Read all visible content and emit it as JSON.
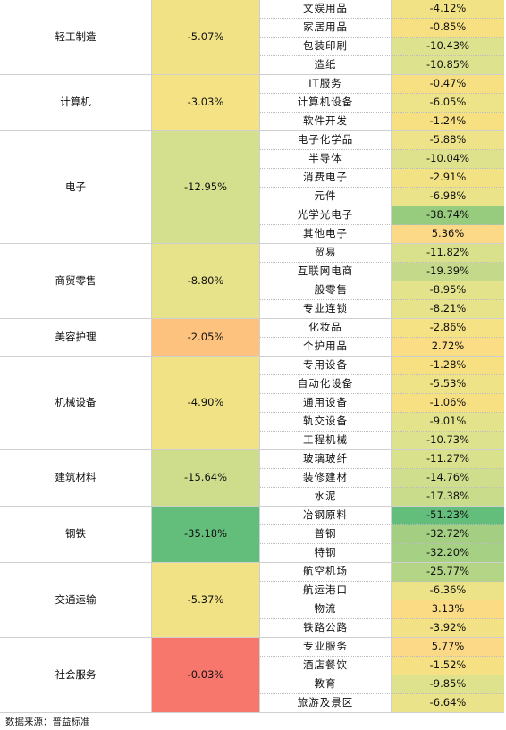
{
  "table": {
    "colors": {
      "yellow": "#F1E385",
      "light_green": "#D4E08D",
      "green": "#97CB7D",
      "dark_green": "#63BE7B",
      "orange": "#FDC27E",
      "light_orange": "#FCD986",
      "red": "#F8776D",
      "mid_green": "#B4D586",
      "olive": "#C4DA8A"
    },
    "groups": [
      {
        "sector": "轻工制造",
        "total": "-5.07%",
        "total_color": "#F1E385",
        "rows": [
          {
            "name": "文娱用品",
            "value": "-4.12%",
            "color": "#F1E385"
          },
          {
            "name": "家居用品",
            "value": "-0.85%",
            "color": "#F6E082"
          },
          {
            "name": "包装印刷",
            "value": "-10.43%",
            "color": "#DCE28D"
          },
          {
            "name": "造纸",
            "value": "-10.85%",
            "color": "#DCE28D"
          }
        ]
      },
      {
        "sector": "计算机",
        "total": "-3.03%",
        "total_color": "#F4E284",
        "rows": [
          {
            "name": "IT服务",
            "value": "-0.47%",
            "color": "#F7E082"
          },
          {
            "name": "计算机设备",
            "value": "-6.05%",
            "color": "#EDE389"
          },
          {
            "name": "软件开发",
            "value": "-1.24%",
            "color": "#F6E082"
          }
        ]
      },
      {
        "sector": "电子",
        "total": "-12.95%",
        "total_color": "#D4E08D",
        "rows": [
          {
            "name": "电子化学品",
            "value": "-5.88%",
            "color": "#EEE389"
          },
          {
            "name": "半导体",
            "value": "-10.04%",
            "color": "#DEE28C"
          },
          {
            "name": "消费电子",
            "value": "-2.91%",
            "color": "#F3E284"
          },
          {
            "name": "元件",
            "value": "-6.98%",
            "color": "#EAE389"
          },
          {
            "name": "光学光电子",
            "value": "-38.74%",
            "color": "#97CB7D"
          },
          {
            "name": "其他电子",
            "value": "5.36%",
            "color": "#FCD986"
          }
        ]
      },
      {
        "sector": "商贸零售",
        "total": "-8.80%",
        "total_color": "#E6E38A",
        "rows": [
          {
            "name": "贸易",
            "value": "-11.82%",
            "color": "#D9E18D"
          },
          {
            "name": "互联网电商",
            "value": "-19.39%",
            "color": "#C4DA8A"
          },
          {
            "name": "一般零售",
            "value": "-8.95%",
            "color": "#E3E38B"
          },
          {
            "name": "专业连锁",
            "value": "-8.21%",
            "color": "#E6E38A"
          }
        ]
      },
      {
        "sector": "美容护理",
        "total": "-2.05%",
        "total_color": "#FDC27E",
        "rows": [
          {
            "name": "化妆品",
            "value": "-2.86%",
            "color": "#F4E284"
          },
          {
            "name": "个护用品",
            "value": "2.72%",
            "color": "#FBDD85"
          }
        ]
      },
      {
        "sector": "机械设备",
        "total": "-4.90%",
        "total_color": "#F1E385",
        "rows": [
          {
            "name": "专用设备",
            "value": "-1.28%",
            "color": "#F6E082"
          },
          {
            "name": "自动化设备",
            "value": "-5.53%",
            "color": "#EFE388"
          },
          {
            "name": "通用设备",
            "value": "-1.06%",
            "color": "#F6E082"
          },
          {
            "name": "轨交设备",
            "value": "-9.01%",
            "color": "#E3E38B"
          },
          {
            "name": "工程机械",
            "value": "-10.73%",
            "color": "#DCE28D"
          }
        ]
      },
      {
        "sector": "建筑材料",
        "total": "-15.64%",
        "total_color": "#CDDD8C",
        "rows": [
          {
            "name": "玻璃玻纤",
            "value": "-11.27%",
            "color": "#DAE18D"
          },
          {
            "name": "装修建材",
            "value": "-14.76%",
            "color": "#CFDE8C"
          },
          {
            "name": "水泥",
            "value": "-17.38%",
            "color": "#C9DC8B"
          }
        ]
      },
      {
        "sector": "钢铁",
        "total": "-35.18%",
        "total_color": "#63BE7B",
        "rows": [
          {
            "name": "冶钢原料",
            "value": "-51.23%",
            "color": "#63BE7B"
          },
          {
            "name": "普钢",
            "value": "-32.72%",
            "color": "#A4CF82"
          },
          {
            "name": "特钢",
            "value": "-32.20%",
            "color": "#A6D083"
          }
        ]
      },
      {
        "sector": "交通运输",
        "total": "-5.37%",
        "total_color": "#F1E385",
        "rows": [
          {
            "name": "航空机场",
            "value": "-25.77%",
            "color": "#B4D586"
          },
          {
            "name": "航运港口",
            "value": "-6.36%",
            "color": "#ECE389"
          },
          {
            "name": "物流",
            "value": "3.13%",
            "color": "#FBDC85"
          },
          {
            "name": "铁路公路",
            "value": "-3.92%",
            "color": "#F2E285"
          }
        ]
      },
      {
        "sector": "社会服务",
        "total": "-0.03%",
        "total_color": "#F8776D",
        "rows": [
          {
            "name": "专业服务",
            "value": "5.77%",
            "color": "#FCD986"
          },
          {
            "name": "酒店餐饮",
            "value": "-1.52%",
            "color": "#F5E183"
          },
          {
            "name": "教育",
            "value": "-9.85%",
            "color": "#DFE28C"
          },
          {
            "name": "旅游及景区",
            "value": "-6.64%",
            "color": "#EBE389"
          }
        ]
      }
    ]
  },
  "source_note": "数据来源：普益标准"
}
